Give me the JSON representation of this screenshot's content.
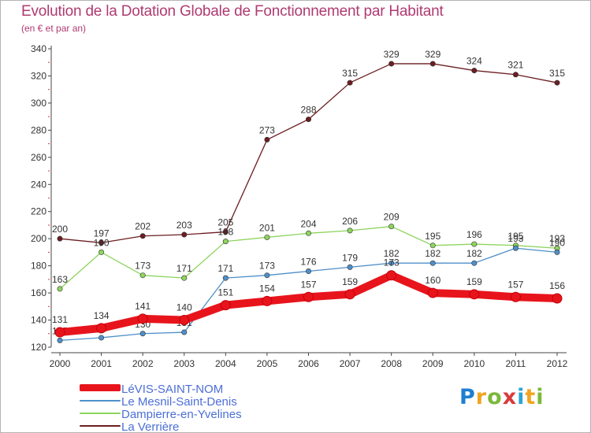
{
  "chart_data": {
    "type": "line",
    "title": "Evolution de la Dotation Globale de Fonctionnement par Habitant",
    "subtitle": "(en € et par an)",
    "xlabel": "",
    "ylabel": "",
    "categories": [
      "2000",
      "2001",
      "2002",
      "2003",
      "2004",
      "2005",
      "2006",
      "2007",
      "2008",
      "2009",
      "2010",
      "2011",
      "2012"
    ],
    "ylim": [
      120,
      340
    ],
    "yticks": [
      120,
      140,
      160,
      180,
      200,
      220,
      240,
      260,
      280,
      300,
      320,
      340
    ],
    "grid": false,
    "legend_position": "bottom-left",
    "series": [
      {
        "name": "La Verrière",
        "color": "#6b1e22",
        "values": [
          200,
          197,
          202,
          203,
          205,
          273,
          288,
          315,
          329,
          329,
          324,
          321,
          315
        ]
      },
      {
        "name": "Dampierre-en-Yvelines",
        "color": "#8ed45e",
        "values": [
          163,
          190,
          173,
          171,
          198,
          201,
          204,
          206,
          209,
          195,
          196,
          195,
          193
        ]
      },
      {
        "name": "Le Mesnil-Saint-Denis",
        "color": "#4f8fc9",
        "values": [
          125,
          127,
          130,
          131,
          171,
          173,
          176,
          179,
          182,
          182,
          182,
          193,
          190
        ]
      },
      {
        "name": "LéVIS-SAINT-NOM",
        "color": "#e8141c",
        "values": [
          131,
          134,
          141,
          140,
          151,
          154,
          157,
          159,
          173,
          160,
          159,
          157,
          156
        ]
      }
    ]
  },
  "legend": {
    "items": [
      {
        "label": "LéVIS-SAINT-NOM",
        "color": "#e8141c"
      },
      {
        "label": "Le Mesnil-Saint-Denis",
        "color": "#4f8fc9"
      },
      {
        "label": "Dampierre-en-Yvelines",
        "color": "#8ed45e"
      },
      {
        "label": "La Verrière",
        "color": "#6b1e22"
      }
    ]
  },
  "logo": {
    "letters": [
      "P",
      "r",
      "o",
      "x",
      "i",
      "t",
      "i"
    ]
  }
}
